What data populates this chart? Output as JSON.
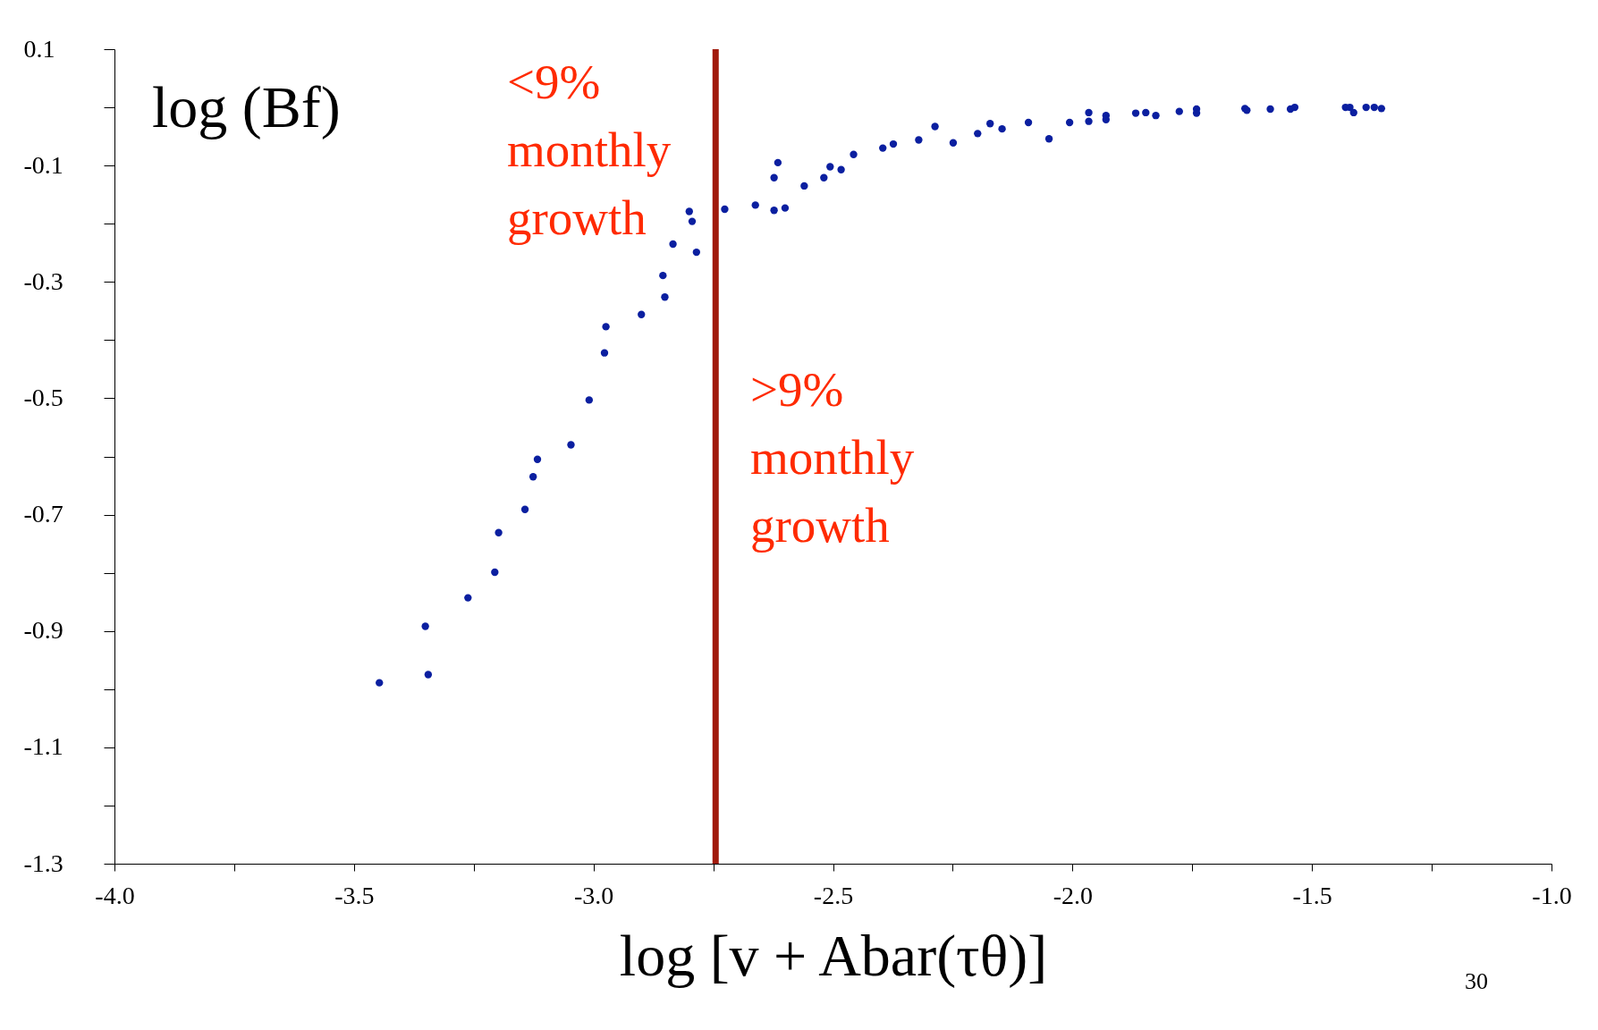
{
  "chart_data": {
    "type": "scatter",
    "xlabel": "log [v + Abar(τθ)]",
    "ylabel": "log (Bf)",
    "x": [
      -3.447,
      -3.351,
      -3.345,
      -3.262,
      -3.206,
      -3.198,
      -3.143,
      -3.126,
      -3.117,
      -3.047,
      -3.009,
      -2.977,
      -2.974,
      -2.9,
      -2.855,
      -2.851,
      -2.834,
      -2.8,
      -2.794,
      -2.785,
      -2.726,
      -2.662,
      -2.623,
      -2.615,
      -2.623,
      -2.6,
      -2.56,
      -2.519,
      -2.506,
      -2.483,
      -2.457,
      -2.396,
      -2.374,
      -2.321,
      -2.287,
      -2.249,
      -2.198,
      -2.172,
      -2.147,
      -2.092,
      -2.049,
      -2.006,
      -1.966,
      -1.966,
      -1.93,
      -1.93,
      -1.868,
      -1.847,
      -1.826,
      -1.777,
      -1.741,
      -1.741,
      -1.64,
      -1.636,
      -1.587,
      -1.545,
      -1.536,
      -1.43,
      -1.421,
      -1.413,
      -1.387,
      -1.37,
      -1.355
    ],
    "series": [
      {
        "color": "#0b1fa0",
        "values": [
          -0.989,
          -0.892,
          -0.975,
          -0.843,
          -0.799,
          -0.731,
          -0.691,
          -0.635,
          -0.605,
          -0.58,
          -0.503,
          -0.422,
          -0.377,
          -0.356,
          -0.289,
          -0.326,
          -0.235,
          -0.179,
          -0.196,
          -0.249,
          -0.175,
          -0.168,
          -0.121,
          -0.095,
          -0.177,
          -0.173,
          -0.135,
          -0.121,
          -0.102,
          -0.107,
          -0.081,
          -0.07,
          -0.063,
          -0.056,
          -0.033,
          -0.061,
          -0.045,
          -0.028,
          -0.037,
          -0.026,
          -0.054,
          -0.026,
          -0.009,
          -0.024,
          -0.014,
          -0.021,
          -0.01,
          -0.009,
          -0.014,
          -0.007,
          -0.003,
          -0.01,
          -0.002,
          -0.005,
          -0.003,
          -0.003,
          0.0,
          0.0,
          0.0,
          -0.009,
          0.0,
          0.0,
          -0.002
        ]
      }
    ],
    "marker": "circle",
    "xlim": [
      -4,
      -1
    ],
    "xticks": [
      {
        "value": -4,
        "label": "-4.0"
      },
      {
        "value": -3.75,
        "label": null
      },
      {
        "value": -3.5,
        "label": "-3.5"
      },
      {
        "value": -3.25,
        "label": null
      },
      {
        "value": -3,
        "label": "-3.0"
      },
      {
        "value": -2.75,
        "label": null
      },
      {
        "value": -2.5,
        "label": "-2.5"
      },
      {
        "value": -2.25,
        "label": null
      },
      {
        "value": -2,
        "label": "-2.0"
      },
      {
        "value": -1.75,
        "label": null
      },
      {
        "value": -1.5,
        "label": "-1.5"
      },
      {
        "value": -1.25,
        "label": null
      },
      {
        "value": -1,
        "label": "-1.0"
      }
    ],
    "ylim": [
      -1.3,
      0.1
    ],
    "yticks": [
      -1.3,
      {
        "value": -1.2,
        "label": null
      },
      -1.1,
      {
        "value": -1.0,
        "label": null
      },
      -0.9,
      {
        "value": -0.8,
        "label": null
      },
      -0.7,
      {
        "value": -0.6,
        "label": null
      },
      -0.5,
      {
        "value": -0.4,
        "label": null
      },
      -0.3,
      {
        "value": -0.2,
        "label": null
      },
      -0.1,
      {
        "value": 0,
        "label": null
      },
      0.1
    ],
    "grid": false,
    "ref_lines": [
      {
        "axis": "x",
        "value": -2.745,
        "color": "#a11a0c"
      }
    ],
    "annotations": [
      "<9%\nmonthly\ngrowth",
      ">9%\nmonthly\ngrowth",
      "30"
    ]
  }
}
